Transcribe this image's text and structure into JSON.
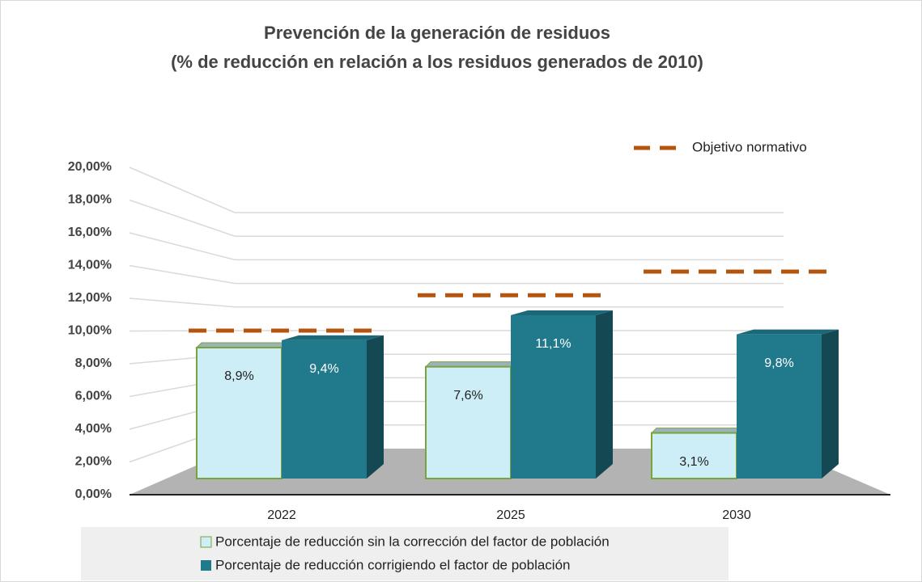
{
  "chart_data": {
    "type": "bar3d",
    "title": "Prevención de la generación de residuos",
    "subtitle": "(% de reducción en relación a los residuos generados de 2010)",
    "categories": [
      "2022",
      "2025",
      "2030"
    ],
    "series": [
      {
        "name": "Porcentaje de reducción sin la corrección del factor de población",
        "color": "#cdeef6",
        "values": [
          8.9,
          7.6,
          3.1
        ],
        "value_labels": [
          "8,9%",
          "7,6%",
          "3,1%"
        ]
      },
      {
        "name": "Porcentaje de reducción corrigiendo el factor de población",
        "color": "#217a8c",
        "values": [
          9.4,
          11.1,
          9.8
        ],
        "value_labels": [
          "9,4%",
          "11,1%",
          "9,8%"
        ]
      }
    ],
    "target": {
      "name": "Objetivo normativo",
      "color": "#b5540d",
      "values": [
        10,
        13,
        15
      ]
    },
    "ylim": [
      0,
      20
    ],
    "yticks": [
      {
        "value": 0,
        "label": "0,00%"
      },
      {
        "value": 2,
        "label": "2,00%"
      },
      {
        "value": 4,
        "label": "4,00%"
      },
      {
        "value": 6,
        "label": "6,00%"
      },
      {
        "value": 8,
        "label": "8,00%"
      },
      {
        "value": 10,
        "label": "10,00%"
      },
      {
        "value": 12,
        "label": "12,00%"
      },
      {
        "value": 14,
        "label": "14,00%"
      },
      {
        "value": 16,
        "label": "16,00%"
      },
      {
        "value": 18,
        "label": "18,00%"
      },
      {
        "value": 20,
        "label": "20,00%"
      }
    ],
    "grid": true
  }
}
